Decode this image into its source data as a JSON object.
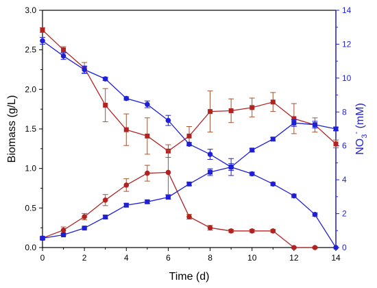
{
  "chart_data": {
    "type": "line",
    "xlabel": "Time (d)",
    "ylabel_left": "Biomass (g/L)",
    "ylabel_right": {
      "prefix": "NO",
      "sub": "3",
      "sup": "-",
      "suffix": " (mM)"
    },
    "xlim": [
      0,
      14
    ],
    "xticks": [
      "0",
      "2",
      "4",
      "6",
      "8",
      "10",
      "12",
      "14"
    ],
    "ylim_left": [
      0,
      3
    ],
    "yticks_left": [
      "0.0",
      "0.5",
      "1.0",
      "1.5",
      "2.0",
      "2.5",
      "3.0"
    ],
    "ylim_right": [
      0,
      14
    ],
    "yticks_right": [
      "0",
      "2",
      "4",
      "6",
      "8",
      "10",
      "12",
      "14"
    ],
    "grid": false,
    "colors": {
      "red_series": "#b22222",
      "blue_series": "#1f1fd6",
      "errorbar_red": "#a0522d",
      "axis_right": "#1f1fd6"
    },
    "series": [
      {
        "axis": "left",
        "marker": "square",
        "color": "#b22222",
        "x": [
          0,
          1,
          2,
          3,
          4,
          5,
          6,
          7,
          8,
          9,
          10,
          11,
          12,
          13,
          14
        ],
        "y": [
          2.75,
          2.5,
          2.27,
          1.8,
          1.49,
          1.41,
          1.22,
          1.41,
          1.72,
          1.73,
          1.77,
          1.84,
          1.63,
          1.55,
          1.31
        ],
        "err": [
          0.03,
          0.04,
          0.07,
          0.21,
          0.2,
          0.23,
          0.08,
          0.12,
          0.26,
          0.15,
          0.12,
          0.12,
          0.19,
          0.09,
          0.05
        ]
      },
      {
        "axis": "left",
        "marker": "circle",
        "color": "#b22222",
        "x": [
          0,
          1,
          2,
          3,
          4,
          5,
          6,
          7,
          8,
          9,
          10,
          11,
          12,
          13
        ],
        "y": [
          0.12,
          0.22,
          0.39,
          0.6,
          0.79,
          0.94,
          0.95,
          0.39,
          0.25,
          0.21,
          0.21,
          0.21,
          0.0,
          0.0
        ],
        "err": [
          0.02,
          0.04,
          0.04,
          0.07,
          0.08,
          0.1,
          0.28,
          0.03,
          0.03,
          0.02,
          0.02,
          0.02,
          0.01,
          0.01
        ]
      },
      {
        "axis": "right",
        "marker": "circle",
        "color": "#1f1fd6",
        "x": [
          0,
          1,
          2,
          3,
          4,
          5,
          6,
          7,
          8,
          9,
          10,
          11,
          12,
          13,
          14
        ],
        "y": [
          12.2,
          11.3,
          10.5,
          9.95,
          8.8,
          8.45,
          7.5,
          6.1,
          5.5,
          4.75,
          4.35,
          3.75,
          3.05,
          1.95,
          0.0
        ],
        "err": [
          0.2,
          0.2,
          0.2,
          0.1,
          0.1,
          0.2,
          0.3,
          0.1,
          0.3,
          0.5,
          0.1,
          0.1,
          0.1,
          0.1,
          0.0
        ]
      },
      {
        "axis": "right",
        "marker": "square",
        "color": "#1f1fd6",
        "x": [
          0,
          1,
          2,
          3,
          4,
          5,
          6,
          7,
          8,
          9,
          10,
          11,
          12,
          13,
          14
        ],
        "y": [
          0.55,
          0.75,
          1.15,
          1.8,
          2.5,
          2.7,
          2.97,
          3.75,
          4.45,
          4.75,
          5.75,
          6.4,
          7.35,
          7.25,
          7.0
        ],
        "err": [
          0.05,
          0.05,
          0.05,
          0.1,
          0.1,
          0.1,
          0.1,
          0.1,
          0.2,
          0.2,
          0.1,
          0.1,
          0.2,
          0.2,
          0.1
        ]
      }
    ]
  }
}
